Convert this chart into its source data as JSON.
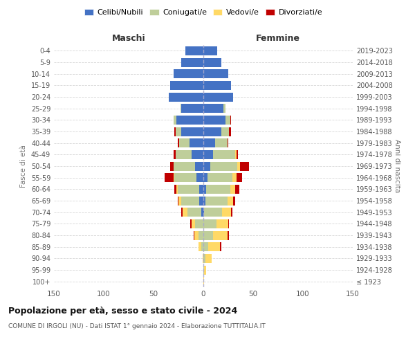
{
  "age_groups": [
    "100+",
    "95-99",
    "90-94",
    "85-89",
    "80-84",
    "75-79",
    "70-74",
    "65-69",
    "60-64",
    "55-59",
    "50-54",
    "45-49",
    "40-44",
    "35-39",
    "30-34",
    "25-29",
    "20-24",
    "15-19",
    "10-14",
    "5-9",
    "0-4"
  ],
  "birth_years": [
    "≤ 1923",
    "1924-1928",
    "1929-1933",
    "1934-1938",
    "1939-1943",
    "1944-1948",
    "1949-1953",
    "1954-1958",
    "1959-1963",
    "1964-1968",
    "1969-1973",
    "1974-1978",
    "1979-1983",
    "1984-1988",
    "1989-1993",
    "1994-1998",
    "1999-2003",
    "2004-2008",
    "2009-2013",
    "2014-2018",
    "2019-2023"
  ],
  "males_celibi": [
    0,
    0,
    0,
    0,
    0,
    0,
    2,
    4,
    4,
    7,
    8,
    12,
    14,
    22,
    27,
    22,
    35,
    33,
    30,
    22,
    18
  ],
  "males_coniugati": [
    0,
    0,
    0,
    2,
    5,
    8,
    14,
    18,
    22,
    22,
    22,
    16,
    10,
    6,
    3,
    1,
    0,
    0,
    0,
    0,
    0
  ],
  "males_vedovi": [
    0,
    0,
    1,
    3,
    4,
    4,
    5,
    3,
    1,
    1,
    0,
    0,
    0,
    0,
    0,
    0,
    0,
    0,
    0,
    0,
    0
  ],
  "males_divorziati": [
    0,
    0,
    0,
    0,
    1,
    1,
    1,
    1,
    2,
    9,
    3,
    2,
    2,
    1,
    0,
    0,
    0,
    0,
    0,
    0,
    0
  ],
  "females_nubili": [
    0,
    0,
    0,
    0,
    0,
    0,
    1,
    2,
    3,
    4,
    7,
    10,
    12,
    18,
    22,
    20,
    30,
    28,
    25,
    18,
    14
  ],
  "females_coniugate": [
    0,
    1,
    2,
    5,
    10,
    13,
    18,
    22,
    24,
    25,
    27,
    22,
    12,
    8,
    5,
    2,
    0,
    0,
    0,
    0,
    0
  ],
  "females_vedove": [
    1,
    2,
    6,
    12,
    14,
    12,
    9,
    6,
    5,
    4,
    3,
    1,
    0,
    0,
    0,
    0,
    0,
    0,
    0,
    0,
    0
  ],
  "females_divorziate": [
    0,
    0,
    0,
    1,
    2,
    1,
    1,
    2,
    4,
    6,
    9,
    2,
    1,
    2,
    1,
    0,
    0,
    0,
    0,
    0,
    0
  ],
  "colors": {
    "celibi_nubili": "#4472C4",
    "coniugati": "#BFCE9A",
    "vedovi": "#FFD966",
    "divorziati": "#C00000"
  },
  "xlim": 150,
  "title_main": "Popolazione per età, sesso e stato civile - 2024",
  "title_sub": "COMUNE DI IRGOLI (NU) - Dati ISTAT 1° gennaio 2024 - Elaborazione TUTTITALIA.IT",
  "ylabel_left": "Fasce di età",
  "ylabel_right": "Anni di nascita",
  "xlabel_male": "Maschi",
  "xlabel_female": "Femmine",
  "legend_labels": [
    "Celibi/Nubili",
    "Coniugati/e",
    "Vedovi/e",
    "Divorziati/e"
  ],
  "background_color": "#ffffff",
  "grid_color": "#cccccc"
}
